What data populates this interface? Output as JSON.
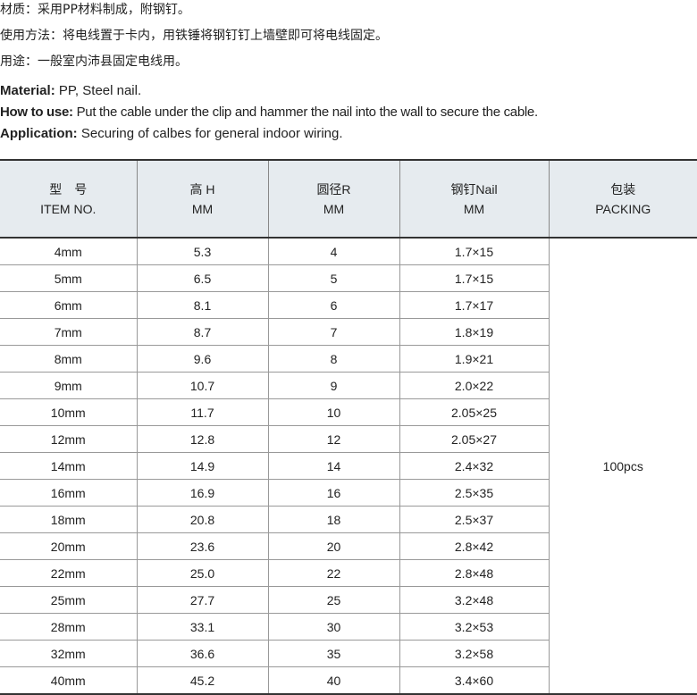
{
  "cn_lines": [
    "材质：采用PP材料制成，附钢钉。",
    "使用方法：将电线置于卡内，用铁锤将钢钉钉上墙壁即可将电线固定。",
    "用途：一般室内沛县固定电线用。"
  ],
  "en": {
    "material_label": "Material:",
    "material": "PP, Steel nail.",
    "use_label": "How to use:",
    "use": "Put the cable under the clip and hammer the nail into the wall to secure the cable.",
    "app_label": "Application:",
    "app": "Securing of calbes for general indoor wiring."
  },
  "headers": [
    [
      "型　号",
      "ITEM NO."
    ],
    [
      "高 H",
      "MM"
    ],
    [
      "圆径R",
      "MM"
    ],
    [
      "钢钉Nail",
      "MM"
    ],
    [
      "包装",
      "PACKING"
    ]
  ],
  "packing": "100pcs",
  "rows": [
    [
      "4mm",
      "5.3",
      "4",
      "1.7×15"
    ],
    [
      "5mm",
      "6.5",
      "5",
      "1.7×15"
    ],
    [
      "6mm",
      "8.1",
      "6",
      "1.7×17"
    ],
    [
      "7mm",
      "8.7",
      "7",
      "1.8×19"
    ],
    [
      "8mm",
      "9.6",
      "8",
      "1.9×21"
    ],
    [
      "9mm",
      "10.7",
      "9",
      "2.0×22"
    ],
    [
      "10mm",
      "11.7",
      "10",
      "2.05×25"
    ],
    [
      "12mm",
      "12.8",
      "12",
      "2.05×27"
    ],
    [
      "14mm",
      "14.9",
      "14",
      "2.4×32"
    ],
    [
      "16mm",
      "16.9",
      "16",
      "2.5×35"
    ],
    [
      "18mm",
      "20.8",
      "18",
      "2.5×37"
    ],
    [
      "20mm",
      "23.6",
      "20",
      "2.8×42"
    ],
    [
      "22mm",
      "25.0",
      "22",
      "2.8×48"
    ],
    [
      "25mm",
      "27.7",
      "25",
      "3.2×48"
    ],
    [
      "28mm",
      "33.1",
      "30",
      "3.2×53"
    ],
    [
      "32mm",
      "36.6",
      "35",
      "3.2×58"
    ],
    [
      "40mm",
      "45.2",
      "40",
      "3.4×60"
    ]
  ]
}
